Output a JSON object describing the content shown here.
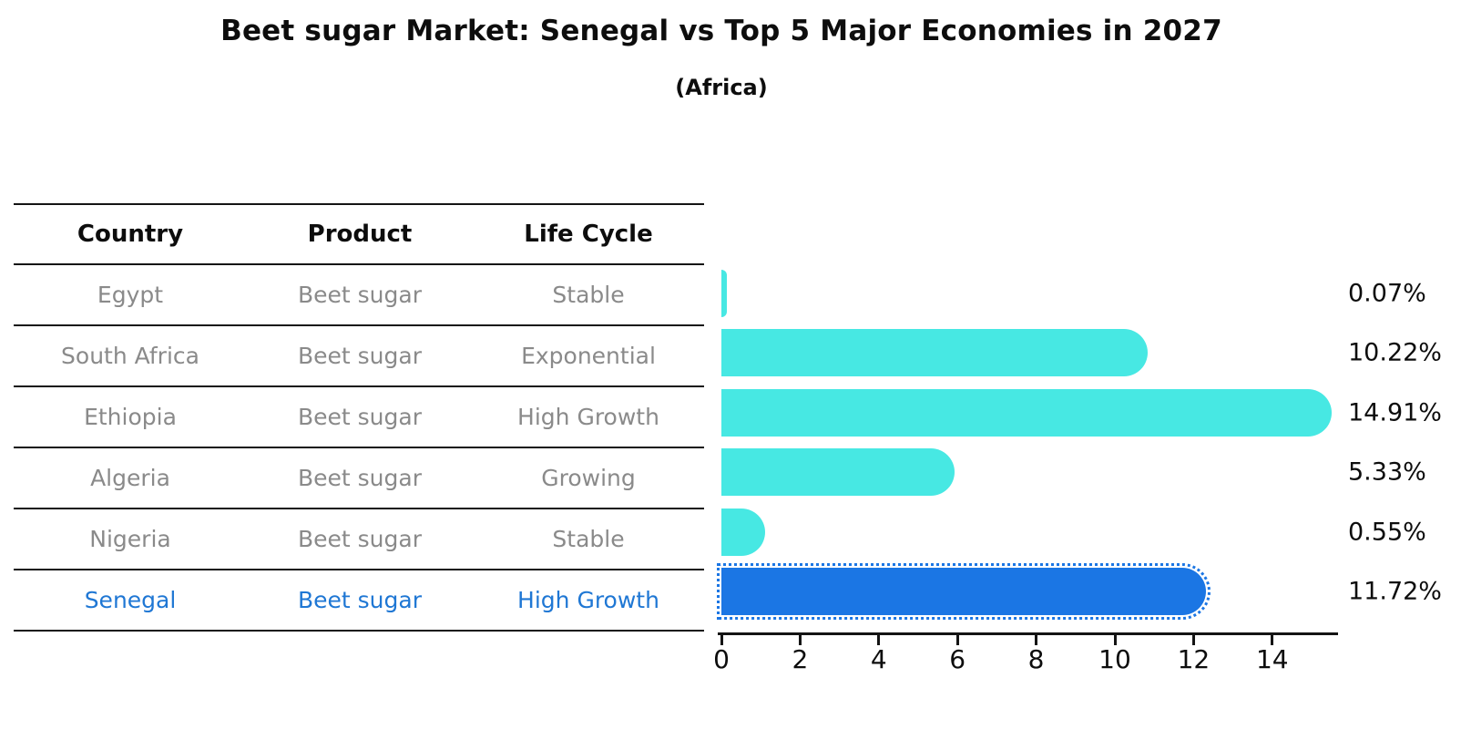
{
  "title": "Beet sugar Market: Senegal vs Top 5 Major Economies in 2027",
  "subtitle": "(Africa)",
  "table": {
    "headers": [
      "Country",
      "Product",
      "Life Cycle"
    ],
    "rows": [
      {
        "country": "Egypt",
        "product": "Beet sugar",
        "life_cycle": "Stable",
        "highlight": false
      },
      {
        "country": "South Africa",
        "product": "Beet sugar",
        "life_cycle": "Exponential",
        "highlight": false
      },
      {
        "country": "Ethiopia",
        "product": "Beet sugar",
        "life_cycle": "High Growth",
        "highlight": false
      },
      {
        "country": "Algeria",
        "product": "Beet sugar",
        "life_cycle": "Growing",
        "highlight": false
      },
      {
        "country": "Nigeria",
        "product": "Beet sugar",
        "life_cycle": "Stable",
        "highlight": false
      },
      {
        "country": "Senegal",
        "product": "Beet sugar",
        "life_cycle": "High Growth",
        "highlight": true
      }
    ]
  },
  "chart_data": {
    "type": "bar",
    "orientation": "horizontal",
    "title": "Beet sugar Market: Senegal vs Top 5 Major Economies in 2027",
    "subtitle": "(Africa)",
    "categories": [
      "Egypt",
      "South Africa",
      "Ethiopia",
      "Algeria",
      "Nigeria",
      "Senegal"
    ],
    "values": [
      0.07,
      10.22,
      14.91,
      5.33,
      0.55,
      11.72
    ],
    "value_labels": [
      "0.07%",
      "10.22%",
      "14.91%",
      "5.33%",
      "0.55%",
      "11.72%"
    ],
    "highlight_index": 5,
    "xticks": [
      0,
      2,
      4,
      6,
      8,
      10,
      12,
      14
    ],
    "xlim": [
      0,
      15.66
    ],
    "grid": false,
    "legend": "none",
    "xlabel": "",
    "ylabel": ""
  },
  "colors": {
    "bar_default": "#47e8e3",
    "bar_highlight": "#1b76e4",
    "highlight_text": "#1f77d4",
    "row_text": "#8a8a8a",
    "header_text": "#0d0d0d",
    "axis": "#141414",
    "background": "#ffffff"
  }
}
